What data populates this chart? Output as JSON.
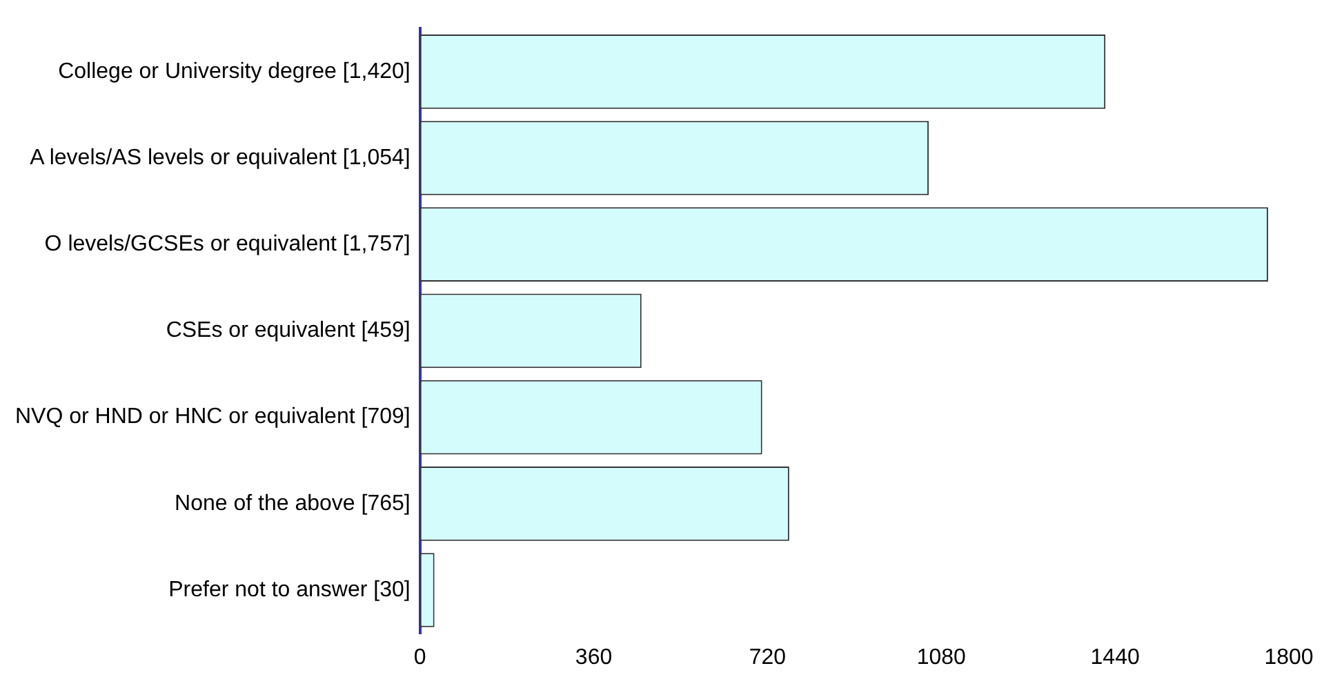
{
  "chart_data": {
    "type": "bar",
    "orientation": "horizontal",
    "categories": [
      "College or University degree [1,420]",
      "A levels/AS levels or equivalent [1,054]",
      "O levels/GCSEs or equivalent [1,757]",
      "CSEs or equivalent [459]",
      "NVQ or HND or HNC or equivalent [709]",
      "None of the above [765]",
      "Prefer not to answer [30]"
    ],
    "values": [
      1420,
      1054,
      1757,
      459,
      709,
      765,
      30
    ],
    "color": "#d4fcfd",
    "xlim": [
      0,
      1800
    ],
    "xticks": [
      0,
      360,
      720,
      1080,
      1440,
      1800
    ]
  }
}
